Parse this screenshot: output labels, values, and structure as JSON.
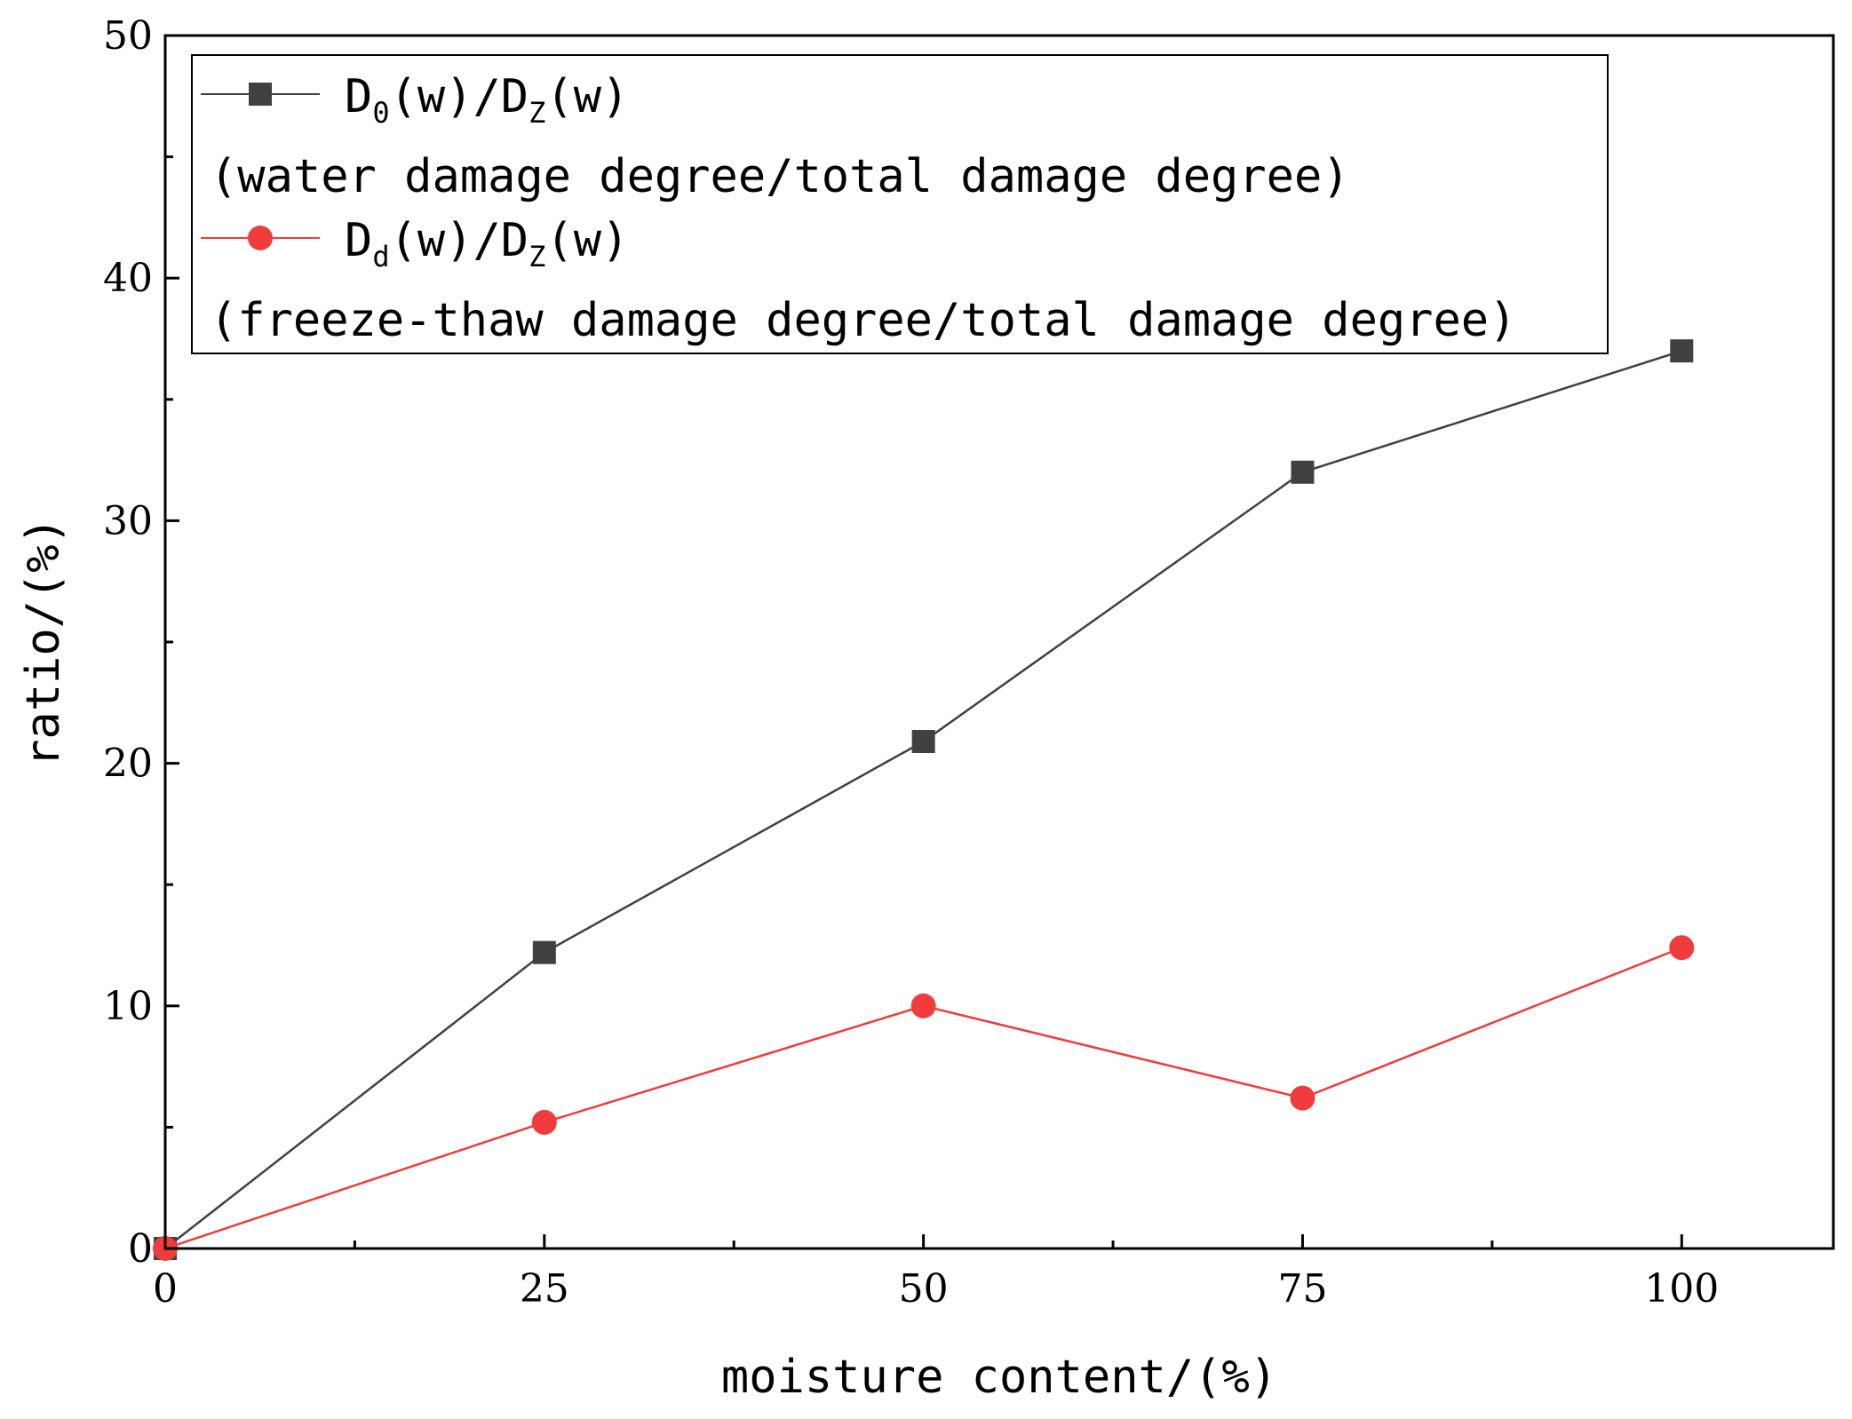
{
  "chart_data": {
    "type": "line",
    "xlabel": "moisture content/(%)",
    "ylabel": "ratio/(%)",
    "xlim": [
      0,
      110
    ],
    "ylim": [
      0,
      50
    ],
    "x_ticks": [
      0,
      25,
      50,
      75,
      100
    ],
    "y_ticks": [
      0,
      10,
      20,
      30,
      40,
      50
    ],
    "grid": false,
    "legend_position": "top-left",
    "series": [
      {
        "legend": {
          "main": "D",
          "sub": "0",
          "mid": "(w)/D",
          "sub2": "Z",
          "tail": "(w)"
        },
        "description": "(water damage degree/total damage degree)",
        "marker": "square",
        "color": "#404040",
        "x": [
          0,
          25,
          50,
          75,
          100
        ],
        "y": [
          0,
          12.2,
          20.9,
          32,
          37
        ]
      },
      {
        "legend": {
          "main": "D",
          "sub": "d",
          "mid": "(w)/D",
          "sub2": "Z",
          "tail": "(w)"
        },
        "description": "(freeze-thaw damage degree/total damage degree)",
        "marker": "circle",
        "color": "#f03c3c",
        "x": [
          0,
          25,
          50,
          75,
          100
        ],
        "y": [
          0,
          5.2,
          10,
          6.2,
          12.4
        ]
      }
    ]
  }
}
